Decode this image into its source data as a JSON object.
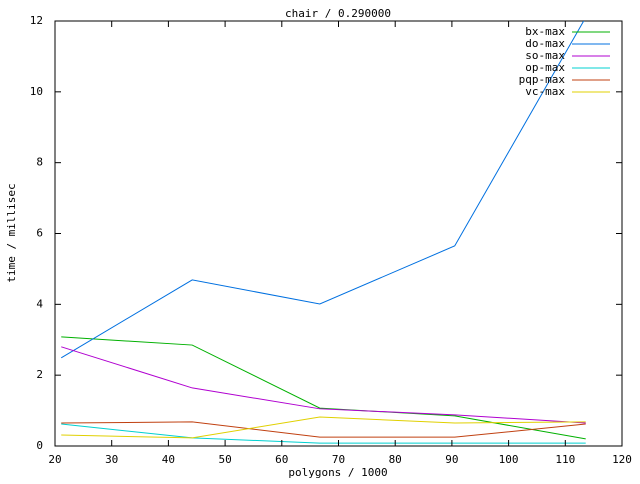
{
  "chart_data": {
    "type": "line",
    "title": "chair / 0.290000",
    "x_label": "polygons / 1000",
    "y_label": "time / millisec",
    "x": [
      21.1,
      44.2,
      66.7,
      90.5,
      113.6
    ],
    "series": [
      {
        "name": "bx-max",
        "color": "#00b000",
        "values": [
          3.08,
          2.85,
          1.07,
          0.85,
          0.2
        ]
      },
      {
        "name": "do-max",
        "color": "#0070e0",
        "values": [
          2.49,
          4.69,
          4.01,
          5.65,
          12.1
        ]
      },
      {
        "name": "so-max",
        "color": "#b000d0",
        "values": [
          2.8,
          1.64,
          1.05,
          0.88,
          0.65
        ]
      },
      {
        "name": "op-max",
        "color": "#00d0d0",
        "values": [
          0.62,
          0.23,
          0.08,
          0.08,
          0.08
        ]
      },
      {
        "name": "pqp-max",
        "color": "#c04010",
        "values": [
          0.65,
          0.68,
          0.25,
          0.25,
          0.62
        ]
      },
      {
        "name": "vc-max",
        "color": "#e0d000",
        "values": [
          0.31,
          0.23,
          0.82,
          0.65,
          0.68
        ]
      }
    ],
    "xlim": [
      20,
      120
    ],
    "xticks": [
      20,
      30,
      40,
      50,
      60,
      70,
      80,
      90,
      100,
      110,
      120
    ],
    "ylim": [
      0,
      12
    ],
    "yticks": [
      0,
      2,
      4,
      6,
      8,
      10,
      12
    ],
    "grid": false,
    "legend": "top-right"
  }
}
